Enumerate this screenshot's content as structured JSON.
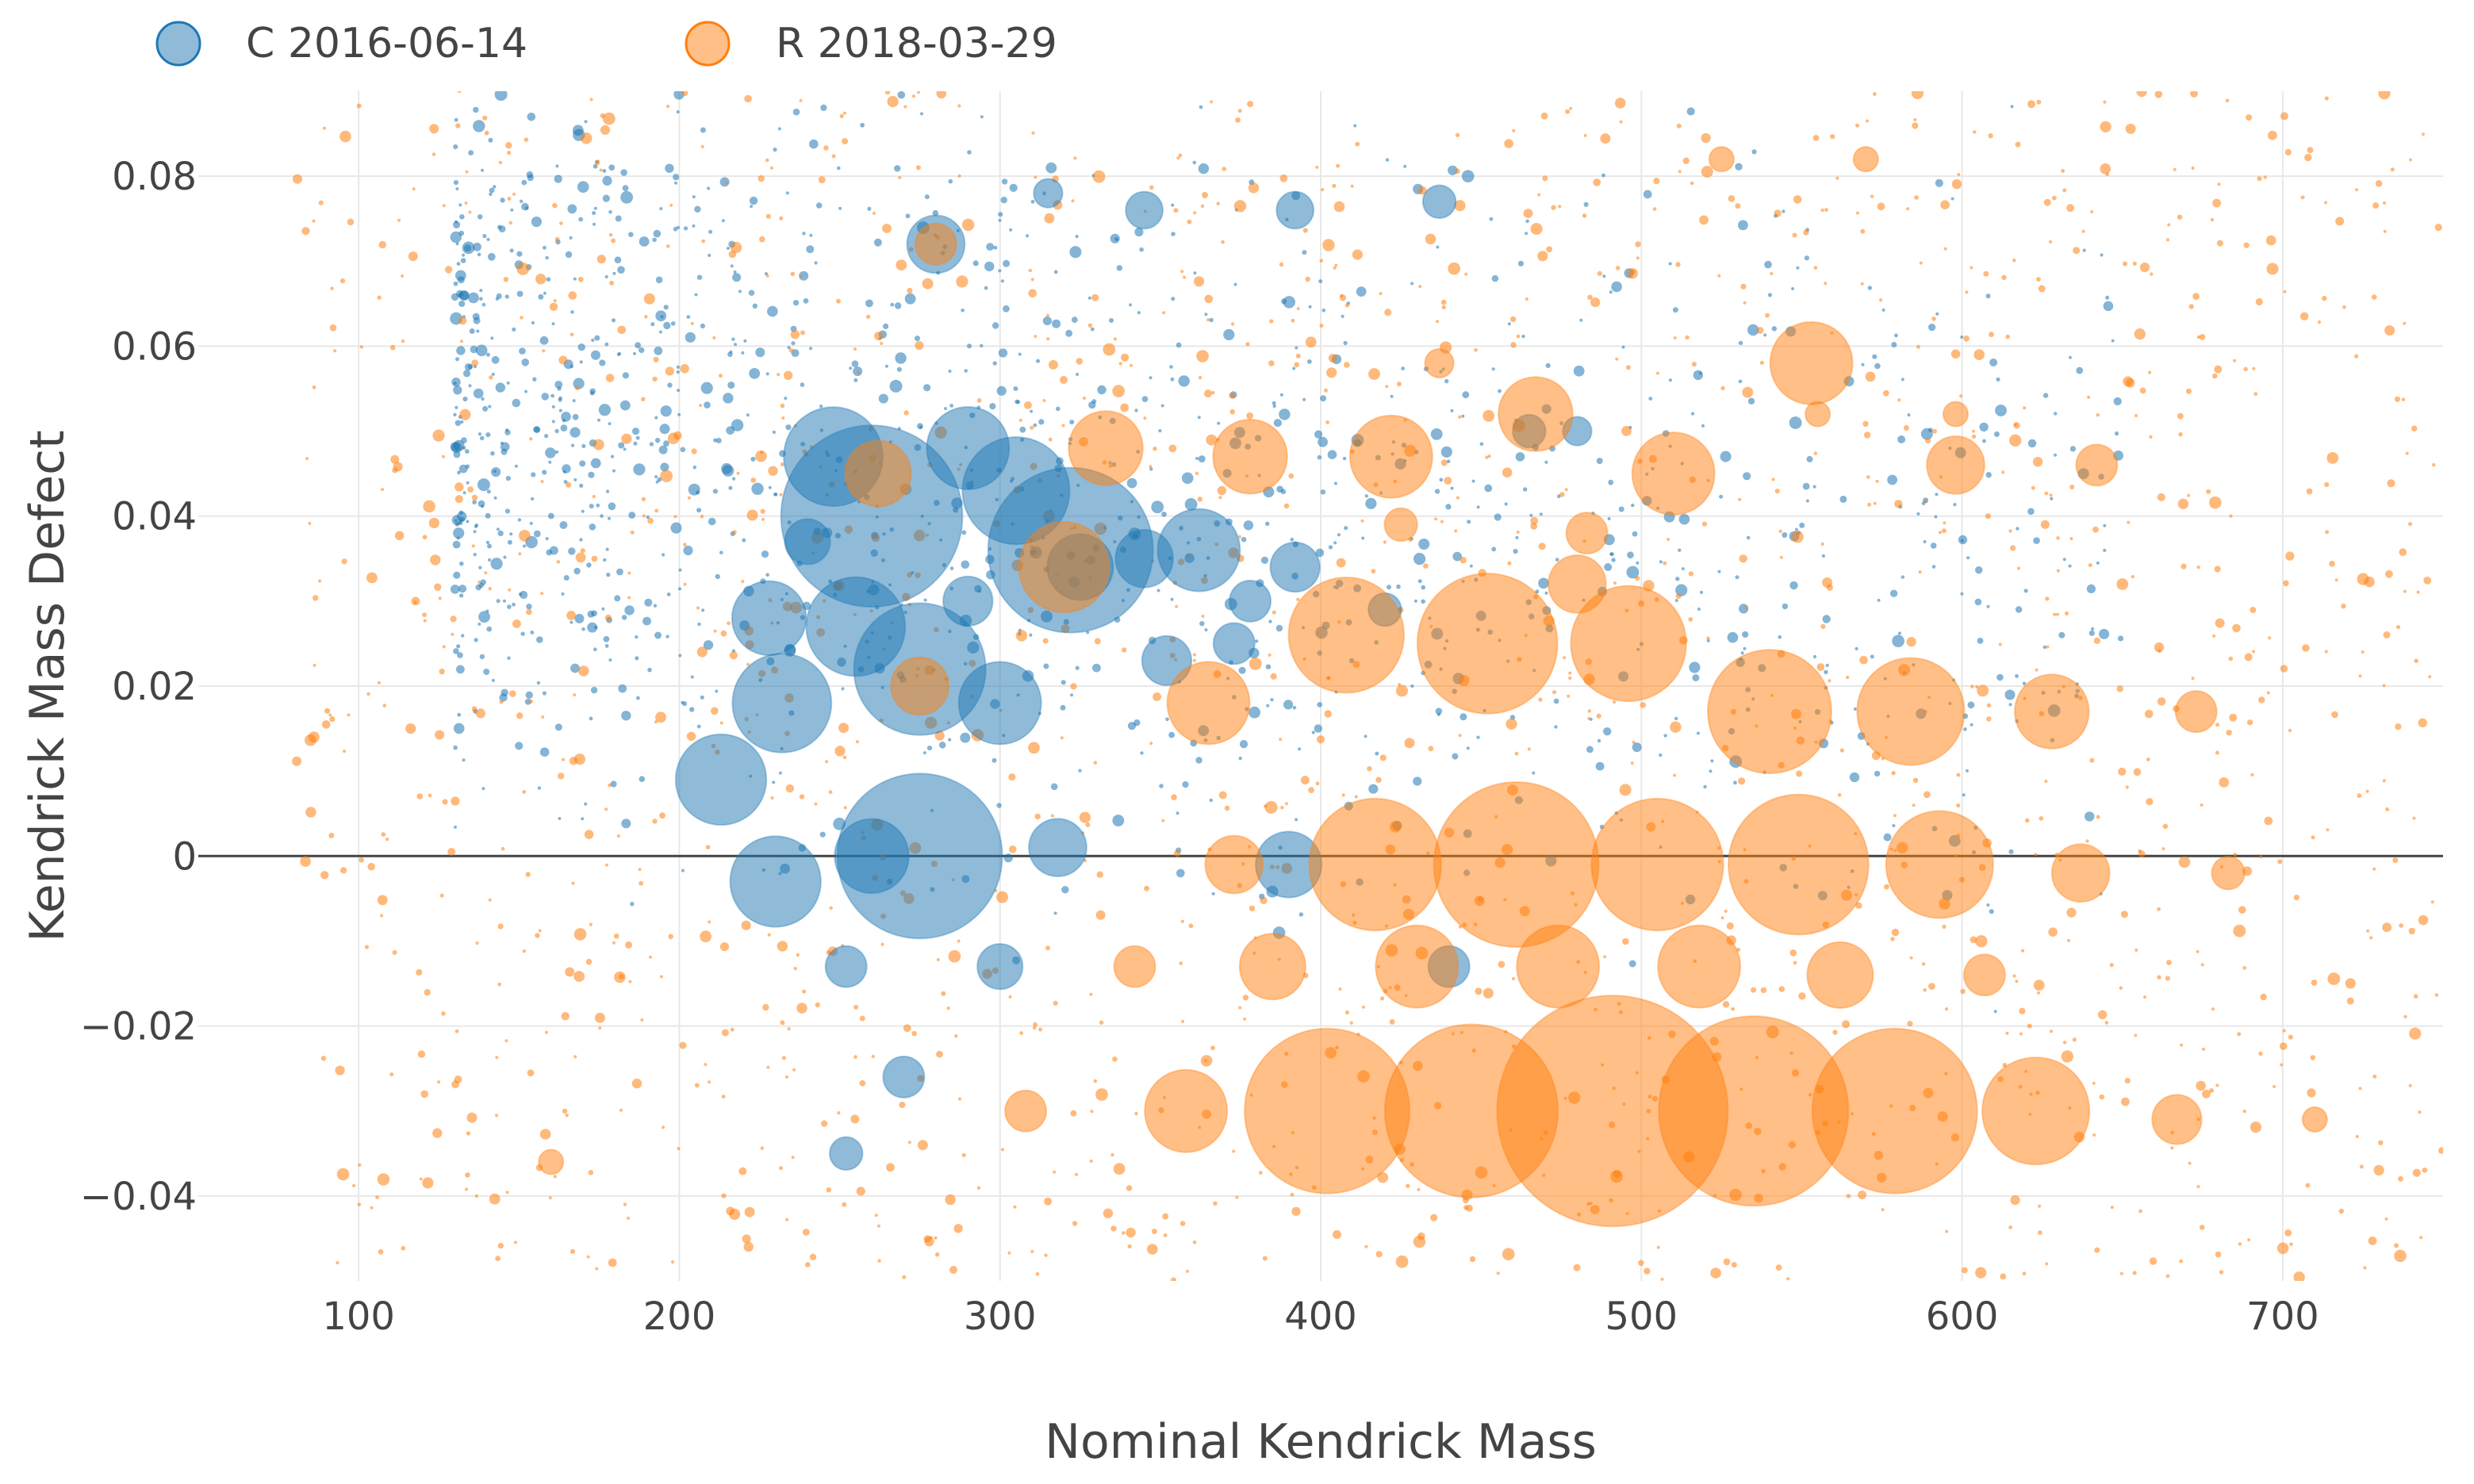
{
  "chart_data": {
    "type": "scatter",
    "title": "",
    "xlabel": "Nominal Kendrick Mass",
    "ylabel": "Kendrick Mass Defect",
    "xlim": [
      50,
      750
    ],
    "ylim": [
      -0.05,
      0.09
    ],
    "x_ticks": [
      100,
      200,
      300,
      400,
      500,
      600,
      700
    ],
    "x_tick_labels": [
      "100",
      "200",
      "300",
      "400",
      "500",
      "600",
      "700"
    ],
    "y_ticks": [
      -0.04,
      -0.02,
      0,
      0.02,
      0.04,
      0.06,
      0.08
    ],
    "y_tick_labels": [
      "−0.04",
      "−0.02",
      "0",
      "0.02",
      "0.04",
      "0.06",
      "0.08"
    ],
    "grid": true,
    "zero_line": true,
    "legend_position": "top-left",
    "size_encoding": "relative intensity (marker area)",
    "series": [
      {
        "name": "C 2016-06-14",
        "color": "#1f77b4",
        "background_points": 1400,
        "points": [
          {
            "x": 280,
            "y": 0.072,
            "s": 14
          },
          {
            "x": 248,
            "y": 0.047,
            "s": 24
          },
          {
            "x": 260,
            "y": 0.04,
            "s": 44
          },
          {
            "x": 290,
            "y": 0.048,
            "s": 20
          },
          {
            "x": 305,
            "y": 0.043,
            "s": 26
          },
          {
            "x": 322,
            "y": 0.036,
            "s": 40
          },
          {
            "x": 362,
            "y": 0.036,
            "s": 20
          },
          {
            "x": 345,
            "y": 0.035,
            "s": 14
          },
          {
            "x": 392,
            "y": 0.034,
            "s": 12
          },
          {
            "x": 228,
            "y": 0.028,
            "s": 18
          },
          {
            "x": 255,
            "y": 0.027,
            "s": 24
          },
          {
            "x": 275,
            "y": 0.022,
            "s": 32
          },
          {
            "x": 300,
            "y": 0.018,
            "s": 20
          },
          {
            "x": 232,
            "y": 0.018,
            "s": 24
          },
          {
            "x": 213,
            "y": 0.009,
            "s": 22
          },
          {
            "x": 275,
            "y": 0.0,
            "s": 40
          },
          {
            "x": 230,
            "y": -0.003,
            "s": 22
          },
          {
            "x": 318,
            "y": 0.001,
            "s": 14
          },
          {
            "x": 390,
            "y": -0.001,
            "s": 16
          },
          {
            "x": 352,
            "y": 0.023,
            "s": 12
          },
          {
            "x": 300,
            "y": -0.013,
            "s": 11
          },
          {
            "x": 440,
            "y": -0.013,
            "s": 10
          },
          {
            "x": 270,
            "y": -0.026,
            "s": 10
          },
          {
            "x": 290,
            "y": 0.03,
            "s": 12
          },
          {
            "x": 240,
            "y": 0.037,
            "s": 11
          },
          {
            "x": 325,
            "y": 0.034,
            "s": 16
          },
          {
            "x": 373,
            "y": 0.025,
            "s": 10
          },
          {
            "x": 378,
            "y": 0.03,
            "s": 10
          },
          {
            "x": 437,
            "y": 0.077,
            "s": 8
          },
          {
            "x": 392,
            "y": 0.076,
            "s": 9
          },
          {
            "x": 345,
            "y": 0.076,
            "s": 9
          },
          {
            "x": 315,
            "y": 0.078,
            "s": 7
          },
          {
            "x": 260,
            "y": 0.0,
            "s": 18
          },
          {
            "x": 252,
            "y": -0.013,
            "s": 10
          },
          {
            "x": 252,
            "y": -0.035,
            "s": 8
          },
          {
            "x": 420,
            "y": 0.029,
            "s": 8
          },
          {
            "x": 465,
            "y": 0.05,
            "s": 8
          },
          {
            "x": 480,
            "y": 0.05,
            "s": 7
          }
        ]
      },
      {
        "name": "R 2018-03-29",
        "color": "#ff7f0e",
        "background_points": 1700,
        "points": [
          {
            "x": 280,
            "y": 0.072,
            "s": 10
          },
          {
            "x": 262,
            "y": 0.045,
            "s": 16
          },
          {
            "x": 333,
            "y": 0.048,
            "s": 18
          },
          {
            "x": 378,
            "y": 0.047,
            "s": 18
          },
          {
            "x": 422,
            "y": 0.047,
            "s": 20
          },
          {
            "x": 467,
            "y": 0.052,
            "s": 18
          },
          {
            "x": 510,
            "y": 0.045,
            "s": 20
          },
          {
            "x": 553,
            "y": 0.058,
            "s": 20
          },
          {
            "x": 598,
            "y": 0.046,
            "s": 14
          },
          {
            "x": 642,
            "y": 0.046,
            "s": 10
          },
          {
            "x": 320,
            "y": 0.034,
            "s": 22
          },
          {
            "x": 408,
            "y": 0.026,
            "s": 28
          },
          {
            "x": 452,
            "y": 0.025,
            "s": 34
          },
          {
            "x": 496,
            "y": 0.025,
            "s": 28
          },
          {
            "x": 540,
            "y": 0.017,
            "s": 30
          },
          {
            "x": 584,
            "y": 0.017,
            "s": 26
          },
          {
            "x": 628,
            "y": 0.017,
            "s": 18
          },
          {
            "x": 673,
            "y": 0.017,
            "s": 10
          },
          {
            "x": 365,
            "y": 0.018,
            "s": 20
          },
          {
            "x": 275,
            "y": 0.02,
            "s": 14
          },
          {
            "x": 480,
            "y": 0.032,
            "s": 14
          },
          {
            "x": 483,
            "y": 0.038,
            "s": 10
          },
          {
            "x": 373,
            "y": -0.001,
            "s": 14
          },
          {
            "x": 417,
            "y": -0.001,
            "s": 32
          },
          {
            "x": 461,
            "y": -0.001,
            "s": 40
          },
          {
            "x": 505,
            "y": -0.001,
            "s": 32
          },
          {
            "x": 549,
            "y": -0.001,
            "s": 34
          },
          {
            "x": 593,
            "y": -0.001,
            "s": 26
          },
          {
            "x": 637,
            "y": -0.002,
            "s": 14
          },
          {
            "x": 683,
            "y": -0.002,
            "s": 8
          },
          {
            "x": 385,
            "y": -0.013,
            "s": 16
          },
          {
            "x": 430,
            "y": -0.013,
            "s": 20
          },
          {
            "x": 474,
            "y": -0.013,
            "s": 20
          },
          {
            "x": 518,
            "y": -0.013,
            "s": 20
          },
          {
            "x": 562,
            "y": -0.014,
            "s": 16
          },
          {
            "x": 607,
            "y": -0.014,
            "s": 10
          },
          {
            "x": 342,
            "y": -0.013,
            "s": 10
          },
          {
            "x": 358,
            "y": -0.03,
            "s": 20
          },
          {
            "x": 402,
            "y": -0.03,
            "s": 40
          },
          {
            "x": 447,
            "y": -0.03,
            "s": 42
          },
          {
            "x": 491,
            "y": -0.03,
            "s": 56
          },
          {
            "x": 535,
            "y": -0.03,
            "s": 46
          },
          {
            "x": 579,
            "y": -0.03,
            "s": 40
          },
          {
            "x": 623,
            "y": -0.03,
            "s": 26
          },
          {
            "x": 667,
            "y": -0.031,
            "s": 12
          },
          {
            "x": 710,
            "y": -0.031,
            "s": 6
          },
          {
            "x": 308,
            "y": -0.03,
            "s": 10
          },
          {
            "x": 160,
            "y": -0.036,
            "s": 6
          },
          {
            "x": 598,
            "y": 0.052,
            "s": 6
          },
          {
            "x": 555,
            "y": 0.052,
            "s": 6
          },
          {
            "x": 525,
            "y": 0.082,
            "s": 6
          },
          {
            "x": 570,
            "y": 0.082,
            "s": 6
          },
          {
            "x": 437,
            "y": 0.058,
            "s": 7
          },
          {
            "x": 425,
            "y": 0.039,
            "s": 8
          }
        ]
      }
    ]
  }
}
